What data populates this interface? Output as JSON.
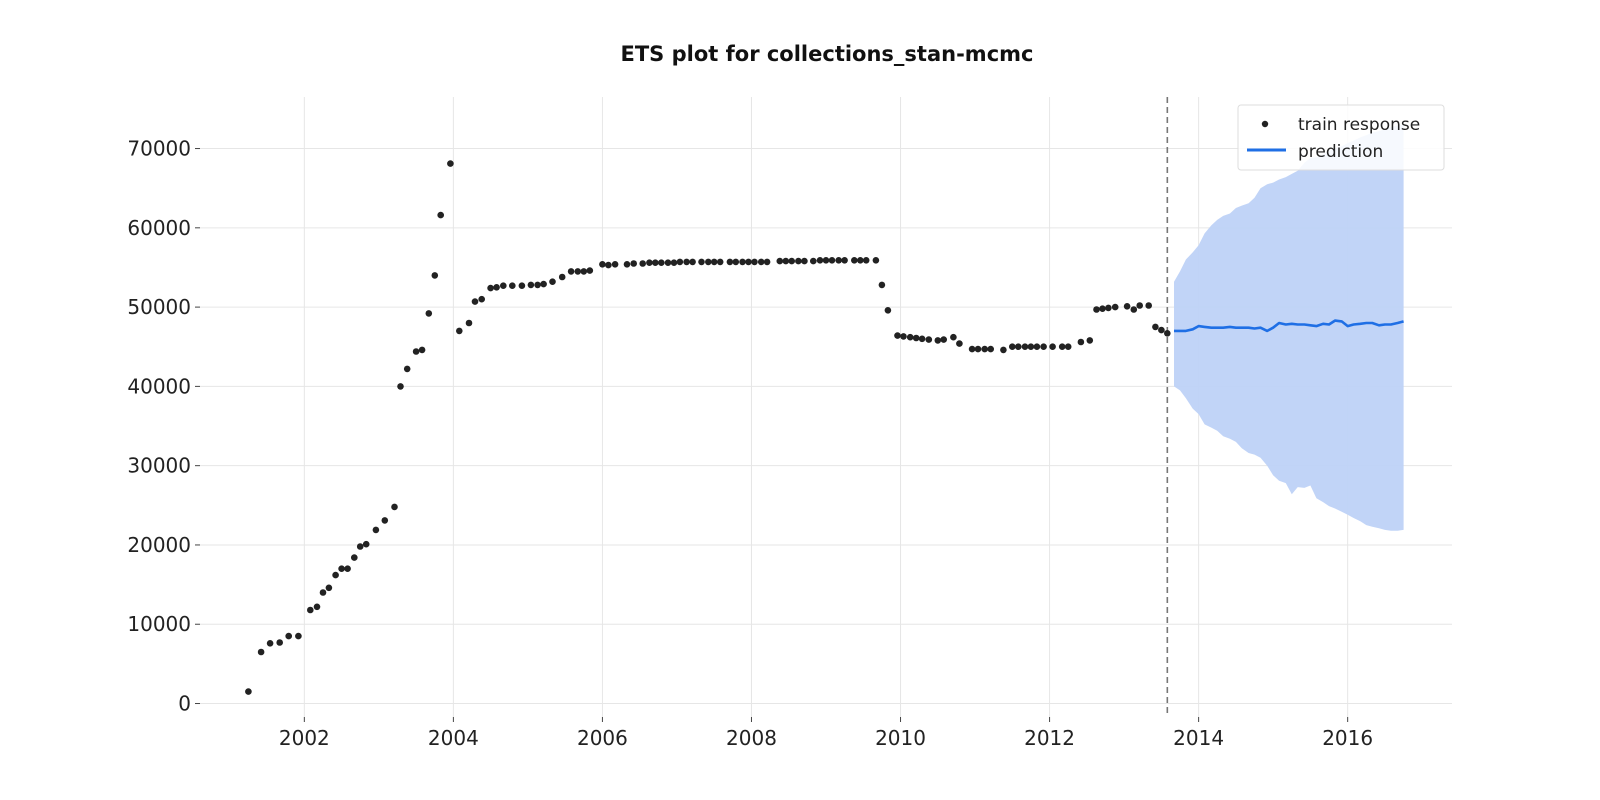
{
  "chart_data": {
    "type": "scatter",
    "title": "ETS plot for collections_stan-mcmc",
    "xlabel": "",
    "ylabel": "",
    "xlim": [
      2000.6,
      2017.4
    ],
    "ylim": [
      -1700,
      76500
    ],
    "x_ticks": [
      2002,
      2004,
      2006,
      2008,
      2010,
      2012,
      2014,
      2016
    ],
    "y_ticks": [
      0,
      10000,
      20000,
      30000,
      40000,
      50000,
      60000,
      70000
    ],
    "grid": true,
    "legend_position": "top-right",
    "colors": {
      "train": "#222222",
      "prediction": "#1f6fe5",
      "band": "#bed2f7",
      "cutoff": "#777777"
    },
    "cutoff_x": 2013.58,
    "series": [
      {
        "name": "train response",
        "type": "scatter",
        "points": [
          [
            2001.25,
            1500
          ],
          [
            2001.42,
            6500
          ],
          [
            2001.54,
            7600
          ],
          [
            2001.67,
            7700
          ],
          [
            2001.79,
            8500
          ],
          [
            2001.92,
            8500
          ],
          [
            2002.08,
            11800
          ],
          [
            2002.17,
            12200
          ],
          [
            2002.25,
            14000
          ],
          [
            2002.33,
            14600
          ],
          [
            2002.42,
            16200
          ],
          [
            2002.5,
            17000
          ],
          [
            2002.58,
            17000
          ],
          [
            2002.67,
            18400
          ],
          [
            2002.75,
            19800
          ],
          [
            2002.83,
            20100
          ],
          [
            2002.96,
            21900
          ],
          [
            2003.08,
            23100
          ],
          [
            2003.21,
            24800
          ],
          [
            2003.29,
            40000
          ],
          [
            2003.38,
            42200
          ],
          [
            2003.5,
            44400
          ],
          [
            2003.58,
            44600
          ],
          [
            2003.67,
            49200
          ],
          [
            2003.75,
            54000
          ],
          [
            2003.83,
            61600
          ],
          [
            2003.96,
            68100
          ],
          [
            2004.08,
            47000
          ],
          [
            2004.21,
            48000
          ],
          [
            2004.29,
            50700
          ],
          [
            2004.38,
            51000
          ],
          [
            2004.5,
            52400
          ],
          [
            2004.58,
            52500
          ],
          [
            2004.67,
            52700
          ],
          [
            2004.79,
            52700
          ],
          [
            2004.92,
            52700
          ],
          [
            2005.04,
            52800
          ],
          [
            2005.13,
            52800
          ],
          [
            2005.21,
            52900
          ],
          [
            2005.33,
            53200
          ],
          [
            2005.46,
            53800
          ],
          [
            2005.58,
            54500
          ],
          [
            2005.67,
            54500
          ],
          [
            2005.75,
            54500
          ],
          [
            2005.83,
            54600
          ],
          [
            2006.0,
            55400
          ],
          [
            2006.08,
            55300
          ],
          [
            2006.17,
            55400
          ],
          [
            2006.33,
            55400
          ],
          [
            2006.42,
            55500
          ],
          [
            2006.54,
            55500
          ],
          [
            2006.63,
            55600
          ],
          [
            2006.71,
            55600
          ],
          [
            2006.79,
            55600
          ],
          [
            2006.88,
            55600
          ],
          [
            2006.96,
            55600
          ],
          [
            2007.04,
            55700
          ],
          [
            2007.13,
            55700
          ],
          [
            2007.21,
            55700
          ],
          [
            2007.33,
            55700
          ],
          [
            2007.42,
            55700
          ],
          [
            2007.5,
            55700
          ],
          [
            2007.58,
            55700
          ],
          [
            2007.71,
            55700
          ],
          [
            2007.79,
            55700
          ],
          [
            2007.88,
            55700
          ],
          [
            2007.96,
            55700
          ],
          [
            2008.04,
            55700
          ],
          [
            2008.13,
            55700
          ],
          [
            2008.21,
            55700
          ],
          [
            2008.38,
            55800
          ],
          [
            2008.46,
            55800
          ],
          [
            2008.54,
            55800
          ],
          [
            2008.63,
            55800
          ],
          [
            2008.71,
            55800
          ],
          [
            2008.83,
            55800
          ],
          [
            2008.92,
            55900
          ],
          [
            2009.0,
            55900
          ],
          [
            2009.08,
            55900
          ],
          [
            2009.17,
            55900
          ],
          [
            2009.25,
            55900
          ],
          [
            2009.38,
            55900
          ],
          [
            2009.46,
            55900
          ],
          [
            2009.54,
            55900
          ],
          [
            2009.67,
            55900
          ],
          [
            2009.75,
            52800
          ],
          [
            2009.83,
            49600
          ],
          [
            2009.96,
            46400
          ],
          [
            2010.04,
            46300
          ],
          [
            2010.13,
            46200
          ],
          [
            2010.21,
            46100
          ],
          [
            2010.29,
            46000
          ],
          [
            2010.38,
            45900
          ],
          [
            2010.5,
            45800
          ],
          [
            2010.58,
            45900
          ],
          [
            2010.71,
            46200
          ],
          [
            2010.79,
            45400
          ],
          [
            2010.96,
            44700
          ],
          [
            2011.04,
            44700
          ],
          [
            2011.13,
            44700
          ],
          [
            2011.21,
            44700
          ],
          [
            2011.38,
            44600
          ],
          [
            2011.5,
            45000
          ],
          [
            2011.58,
            45000
          ],
          [
            2011.67,
            45000
          ],
          [
            2011.75,
            45000
          ],
          [
            2011.83,
            45000
          ],
          [
            2011.92,
            45000
          ],
          [
            2012.04,
            45000
          ],
          [
            2012.17,
            45000
          ],
          [
            2012.25,
            45000
          ],
          [
            2012.42,
            45600
          ],
          [
            2012.54,
            45800
          ],
          [
            2012.63,
            49700
          ],
          [
            2012.71,
            49800
          ],
          [
            2012.79,
            49900
          ],
          [
            2012.88,
            50000
          ],
          [
            2013.04,
            50100
          ],
          [
            2013.13,
            49700
          ],
          [
            2013.21,
            50200
          ],
          [
            2013.33,
            50200
          ],
          [
            2013.42,
            47500
          ],
          [
            2013.5,
            47100
          ],
          [
            2013.58,
            46700
          ]
        ]
      },
      {
        "name": "prediction",
        "type": "line",
        "points": [
          [
            2013.67,
            47000
          ],
          [
            2013.75,
            47000
          ],
          [
            2013.83,
            47000
          ],
          [
            2013.92,
            47200
          ],
          [
            2014.0,
            47600
          ],
          [
            2014.08,
            47500
          ],
          [
            2014.17,
            47400
          ],
          [
            2014.25,
            47400
          ],
          [
            2014.33,
            47400
          ],
          [
            2014.42,
            47500
          ],
          [
            2014.5,
            47400
          ],
          [
            2014.58,
            47400
          ],
          [
            2014.67,
            47400
          ],
          [
            2014.75,
            47300
          ],
          [
            2014.83,
            47400
          ],
          [
            2014.92,
            47000
          ],
          [
            2015.0,
            47400
          ],
          [
            2015.08,
            48000
          ],
          [
            2015.17,
            47800
          ],
          [
            2015.25,
            47900
          ],
          [
            2015.33,
            47800
          ],
          [
            2015.42,
            47800
          ],
          [
            2015.5,
            47700
          ],
          [
            2015.58,
            47600
          ],
          [
            2015.67,
            47900
          ],
          [
            2015.75,
            47800
          ],
          [
            2015.83,
            48300
          ],
          [
            2015.92,
            48200
          ],
          [
            2016.0,
            47600
          ],
          [
            2016.08,
            47800
          ],
          [
            2016.17,
            47900
          ],
          [
            2016.25,
            48000
          ],
          [
            2016.33,
            48000
          ],
          [
            2016.42,
            47700
          ],
          [
            2016.5,
            47800
          ],
          [
            2016.58,
            47800
          ],
          [
            2016.67,
            48000
          ],
          [
            2016.75,
            48200
          ]
        ]
      }
    ],
    "interval": {
      "x": [
        2013.67,
        2013.75,
        2013.83,
        2013.92,
        2014.0,
        2014.08,
        2014.17,
        2014.25,
        2014.33,
        2014.42,
        2014.5,
        2014.58,
        2014.67,
        2014.75,
        2014.83,
        2014.92,
        2015.0,
        2015.08,
        2015.17,
        2015.25,
        2015.33,
        2015.42,
        2015.5,
        2015.58,
        2015.67,
        2015.75,
        2015.83,
        2015.92,
        2016.0,
        2016.08,
        2016.17,
        2016.25,
        2016.33,
        2016.42,
        2016.5,
        2016.58,
        2016.67,
        2016.75
      ],
      "upper": [
        53200,
        54500,
        56000,
        56900,
        57800,
        59300,
        60300,
        61000,
        61500,
        61800,
        62500,
        62800,
        63100,
        63800,
        65000,
        65500,
        65700,
        66100,
        66400,
        66800,
        67200,
        68200,
        68800,
        68900,
        69300,
        69700,
        70000,
        70300,
        70700,
        71000,
        71400,
        71700,
        72000,
        72200,
        72500,
        72700,
        72900,
        73000
      ],
      "lower": [
        40000,
        39500,
        38500,
        37200,
        36500,
        35200,
        34800,
        34400,
        33700,
        33400,
        33000,
        32200,
        31600,
        31400,
        31000,
        30000,
        28800,
        28100,
        27800,
        26400,
        27300,
        27200,
        27500,
        25900,
        25400,
        24900,
        24600,
        24200,
        23800,
        23400,
        23000,
        22500,
        22300,
        22100,
        21900,
        21800,
        21800,
        21900
      ]
    }
  }
}
